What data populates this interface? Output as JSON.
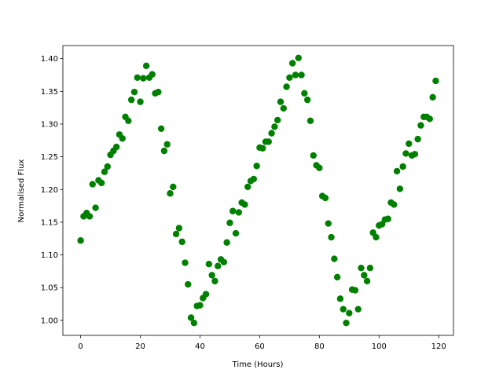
{
  "chart_data": {
    "type": "scatter",
    "xlabel": "Time (Hours)",
    "ylabel": "Normalised Flux",
    "color": "#008000",
    "x": [
      0,
      1,
      2,
      3,
      4,
      5,
      6,
      7,
      8,
      9,
      10,
      11,
      12,
      13,
      14,
      15,
      16,
      17,
      18,
      19,
      20,
      21,
      22,
      23,
      24,
      25,
      26,
      27,
      28,
      29,
      30,
      31,
      32,
      33,
      34,
      35,
      36,
      37,
      38,
      39,
      40,
      41,
      42,
      43,
      44,
      45,
      46,
      47,
      48,
      49,
      50,
      51,
      52,
      53,
      54,
      55,
      56,
      57,
      58,
      59,
      60,
      61,
      62,
      63,
      64,
      65,
      66,
      67,
      68,
      69,
      70,
      71,
      72,
      73,
      74,
      75,
      76,
      77,
      78,
      79,
      80,
      81,
      82,
      83,
      84,
      85,
      86,
      87,
      88,
      89,
      90,
      91,
      92,
      93,
      94,
      95,
      96,
      97,
      98,
      99,
      100,
      101,
      102,
      103,
      104,
      105,
      106,
      107,
      108,
      109,
      110,
      111,
      112,
      113,
      114,
      115,
      116,
      117,
      118,
      119
    ],
    "values": [
      1.122,
      1.159,
      1.164,
      1.159,
      1.208,
      1.172,
      1.214,
      1.21,
      1.227,
      1.235,
      1.253,
      1.259,
      1.265,
      1.284,
      1.278,
      1.311,
      1.305,
      1.337,
      1.349,
      1.371,
      1.334,
      1.37,
      1.389,
      1.371,
      1.376,
      1.347,
      1.349,
      1.293,
      1.259,
      1.269,
      1.194,
      1.204,
      1.132,
      1.141,
      1.12,
      1.088,
      1.055,
      1.004,
      0.996,
      1.022,
      1.023,
      1.034,
      1.04,
      1.086,
      1.069,
      1.06,
      1.083,
      1.093,
      1.089,
      1.119,
      1.149,
      1.167,
      1.133,
      1.165,
      1.18,
      1.177,
      1.204,
      1.213,
      1.216,
      1.236,
      1.264,
      1.263,
      1.273,
      1.273,
      1.286,
      1.296,
      1.306,
      1.334,
      1.324,
      1.357,
      1.371,
      1.393,
      1.375,
      1.401,
      1.375,
      1.347,
      1.337,
      1.305,
      1.252,
      1.237,
      1.233,
      1.19,
      1.187,
      1.148,
      1.127,
      1.094,
      1.066,
      1.033,
      1.017,
      0.996,
      1.011,
      1.047,
      1.046,
      1.017,
      1.08,
      1.069,
      1.06,
      1.08,
      1.134,
      1.127,
      1.145,
      1.147,
      1.154,
      1.155,
      1.18,
      1.177,
      1.228,
      1.201,
      1.235,
      1.255,
      1.27,
      1.252,
      1.254,
      1.277,
      1.298,
      1.311,
      1.311,
      1.308,
      1.341,
      1.366
    ],
    "xlim": [
      -5.95,
      124.95
    ],
    "xticks": [
      0,
      20,
      40,
      60,
      80,
      100,
      120
    ],
    "ylim": [
      0.977,
      1.42
    ],
    "yticks": [
      {
        "value": 1.0,
        "label": "1.00"
      },
      {
        "value": 1.05,
        "label": "1.05"
      },
      {
        "value": 1.1,
        "label": "1.10"
      },
      {
        "value": 1.15,
        "label": "1.15"
      },
      {
        "value": 1.2,
        "label": "1.20"
      },
      {
        "value": 1.25,
        "label": "1.25"
      },
      {
        "value": 1.3,
        "label": "1.30"
      },
      {
        "value": 1.35,
        "label": "1.35"
      },
      {
        "value": 1.4,
        "label": "1.40"
      }
    ]
  }
}
